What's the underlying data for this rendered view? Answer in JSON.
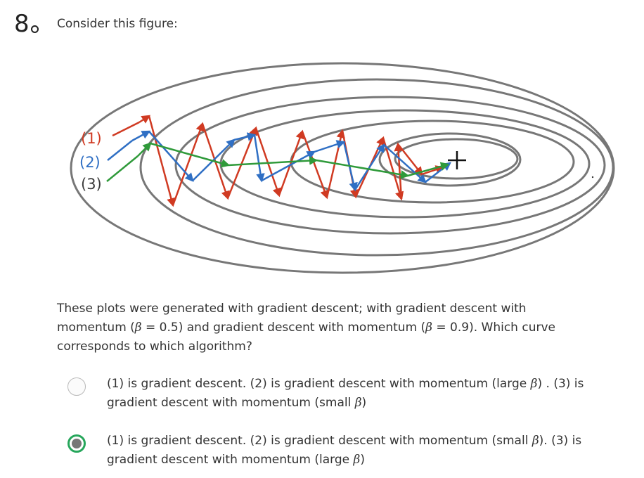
{
  "question": {
    "number": "8",
    "intro": "Consider this figure:",
    "body_lines": [
      "These plots were generated with gradient descent; with gradient descent with",
      "momentum (β = 0.5) and gradient descent with momentum (β = 0.9). Which curve",
      "corresponds to which algorithm?"
    ]
  },
  "figure": {
    "curve_labels": [
      "(1)",
      "(2)",
      "(3)"
    ],
    "colors": {
      "contour": "#777777",
      "curve1": "#d03a22",
      "curve2": "#2f6fc4",
      "curve3": "#2f9a3a",
      "target": "#111111"
    },
    "target_marker": "plus-icon"
  },
  "options": [
    {
      "lines": [
        "(1) is gradient descent. (2) is gradient descent with momentum (large β) . (3) is",
        "gradient descent with momentum (small β)"
      ],
      "selected": false
    },
    {
      "lines": [
        "(1) is gradient descent. (2) is gradient descent with momentum (small β). (3) is",
        "gradient descent with momentum (large β)"
      ],
      "selected": true
    }
  ]
}
